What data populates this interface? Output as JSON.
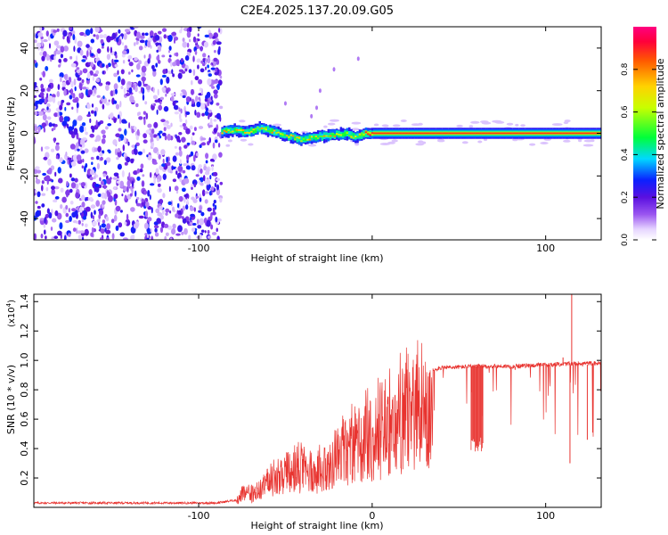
{
  "figure_title": "C2E4.2025.137.20.09.G05",
  "chart_data": [
    {
      "type": "heatmap",
      "title": "C2E4.2025.137.20.09.G05",
      "xlabel": "Height of straight line (km)",
      "ylabel": "Frequency (Hz)",
      "xlim": [
        -195,
        132
      ],
      "ylim": [
        -50,
        50
      ],
      "x_ticks": [
        -100,
        0,
        100
      ],
      "x_tick_labels": [
        "-100",
        "",
        "100"
      ],
      "y_ticks": [
        -40,
        -20,
        0,
        20,
        40
      ],
      "y_tick_labels": [
        "-40",
        "-20",
        "0",
        "20",
        "40"
      ],
      "grid": false,
      "regions": [
        {
          "name": "noise",
          "x_range": [
            -195,
            -87
          ],
          "amplitude_range": [
            0.05,
            0.3
          ]
        },
        {
          "name": "signal",
          "x_range": [
            -87,
            132
          ],
          "center_freq": [
            [
              -87,
              0.5
            ],
            [
              -80,
              1.5
            ],
            [
              -72,
              0.5
            ],
            [
              -65,
              2.5
            ],
            [
              -58,
              1
            ],
            [
              -50,
              -1
            ],
            [
              -42,
              -3
            ],
            [
              -35,
              -2
            ],
            [
              -25,
              -1
            ],
            [
              -15,
              0
            ],
            [
              -10,
              -2
            ],
            [
              -5,
              0
            ],
            [
              0,
              0
            ],
            [
              132,
              0
            ]
          ],
          "peak_amplitude": 1.0
        }
      ],
      "colorbar": {
        "label": "Normalized spectral amplitude",
        "range": [
          0,
          1
        ],
        "ticks": [
          0.0,
          0.2,
          0.4,
          0.6,
          0.8
        ],
        "tick_labels": [
          "0.0",
          "0.2",
          "0.4",
          "0.6",
          "0.8"
        ],
        "colormap": "rainbow"
      }
    },
    {
      "type": "line",
      "xlabel": "Height of straight line (km)",
      "ylabel": "SNR (10 * v/v)",
      "scale_label_base": "(x10",
      "scale_label_exp": "4",
      "scale_label_end": ")",
      "xlim": [
        -195,
        132
      ],
      "ylim": [
        0,
        1.45
      ],
      "x_ticks": [
        -100,
        0,
        100
      ],
      "x_tick_labels": [
        "-100",
        "0",
        "100"
      ],
      "y_ticks": [
        0.2,
        0.4,
        0.6,
        0.8,
        1.0,
        1.2,
        1.4
      ],
      "y_tick_labels": [
        "0.2",
        "0.4",
        "0.6",
        "0.8",
        "1.0",
        "1.2",
        "1.4"
      ],
      "grid": false,
      "series": [
        {
          "color": "#e8332f",
          "envelope": [
            {
              "x": -195,
              "y": 0.03
            },
            {
              "x": -90,
              "y": 0.03
            },
            {
              "x": -78,
              "y": 0.05
            },
            {
              "x": -75,
              "y": 0.15
            },
            {
              "x": -70,
              "y": 0.12
            },
            {
              "x": -60,
              "y": 0.25
            },
            {
              "x": -50,
              "y": 0.3
            },
            {
              "x": -40,
              "y": 0.38
            },
            {
              "x": -30,
              "y": 0.35
            },
            {
              "x": -20,
              "y": 0.5
            },
            {
              "x": -10,
              "y": 0.6
            },
            {
              "x": 0,
              "y": 0.68
            },
            {
              "x": 10,
              "y": 0.8
            },
            {
              "x": 20,
              "y": 0.88
            },
            {
              "x": 30,
              "y": 0.93
            },
            {
              "x": 40,
              "y": 0.95
            },
            {
              "x": 60,
              "y": 0.96
            },
            {
              "x": 80,
              "y": 0.96
            },
            {
              "x": 100,
              "y": 0.97
            },
            {
              "x": 120,
              "y": 0.98
            },
            {
              "x": 132,
              "y": 0.98
            }
          ],
          "dips": [
            {
              "x": 58,
              "y": 0.38
            },
            {
              "x": 60,
              "y": 0.4
            },
            {
              "x": 62,
              "y": 0.42
            },
            {
              "x": 63,
              "y": 0.39
            }
          ],
          "spikes": [
            {
              "x": 115,
              "y": 1.45
            },
            {
              "x": 114,
              "y": 0.3
            },
            {
              "x": 110,
              "y": 1.02
            },
            {
              "x": 124,
              "y": 0.46
            }
          ]
        }
      ]
    }
  ]
}
